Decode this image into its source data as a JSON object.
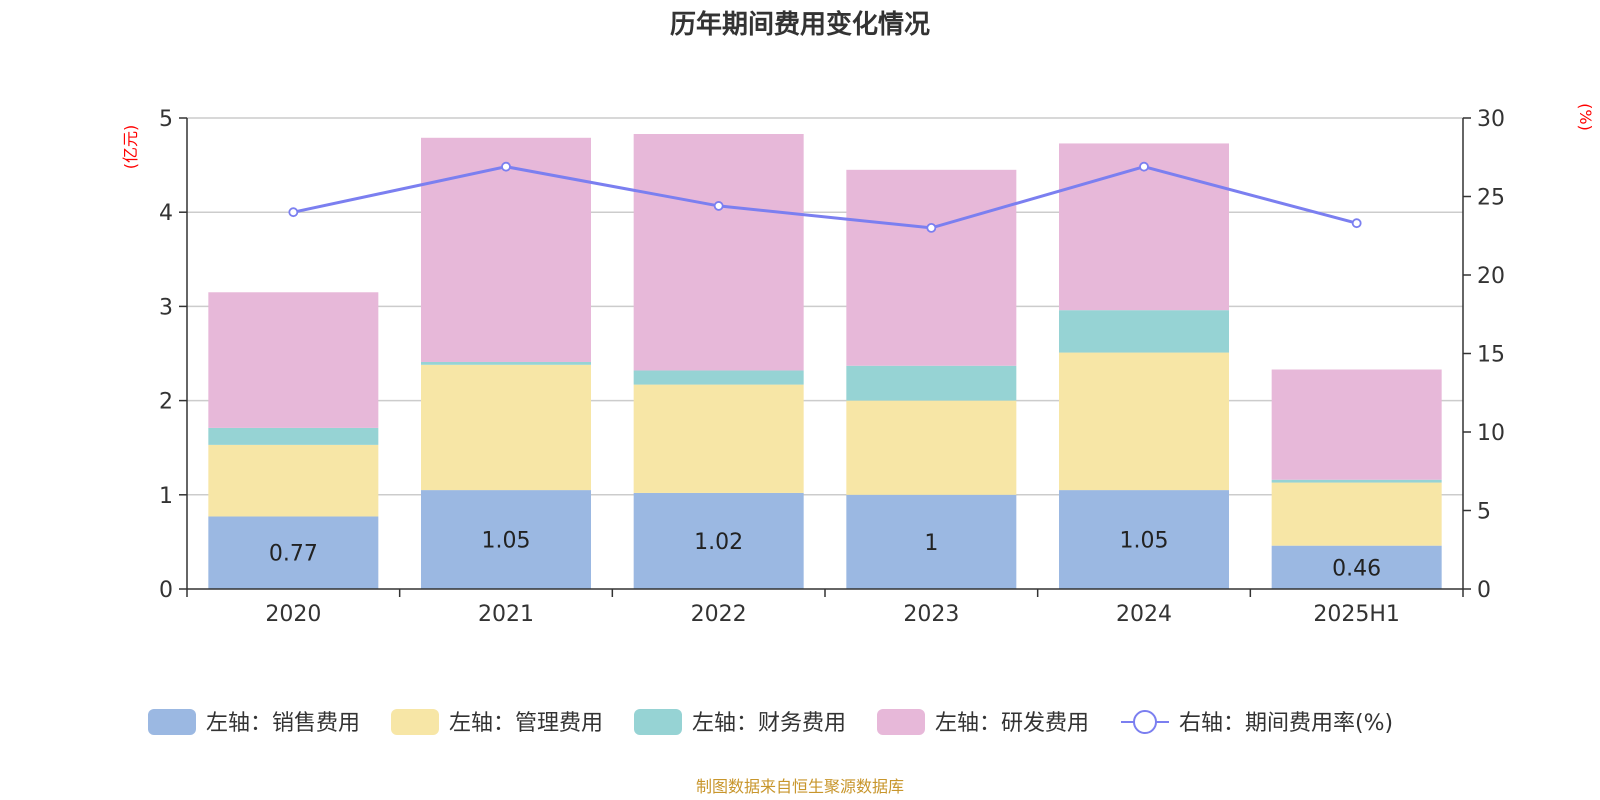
{
  "colors": {
    "sales": "#9bb8e2",
    "admin": "#f7e6a6",
    "finance": "#96d3d4",
    "rnd": "#e7b8d9",
    "rate_line": "#7b7ff0",
    "axis_unit": "#ff0000",
    "source": "#c8962c",
    "grid": "#cccccc"
  },
  "source": "制图数据来自恒生聚源数据库",
  "chart_data": {
    "type": "bar",
    "stacked": true,
    "title": "历年期间费用变化情况",
    "categories": [
      "2020",
      "2021",
      "2022",
      "2023",
      "2024",
      "2025H1"
    ],
    "y_left": {
      "unit_label": "(亿元)",
      "range": [
        0,
        5
      ],
      "ticks": [
        "0",
        "1",
        "2",
        "3",
        "4",
        "5"
      ]
    },
    "y_right": {
      "unit_label": "(%)",
      "range": [
        0,
        30
      ],
      "ticks": [
        "0",
        "5",
        "10",
        "15",
        "20",
        "25",
        "30"
      ]
    },
    "grid": true,
    "legend_position": "bottom",
    "series": [
      {
        "key": "sales",
        "name": "左轴：销售费用",
        "axis": "left",
        "type": "bar",
        "values": [
          0.77,
          1.05,
          1.02,
          1.0,
          1.05,
          0.46
        ],
        "labels": [
          "0.77",
          "1.05",
          "1.02",
          "1",
          "1.05",
          "0.46"
        ]
      },
      {
        "key": "admin",
        "name": "左轴：管理费用",
        "axis": "left",
        "type": "bar",
        "values": [
          0.76,
          1.33,
          1.15,
          1.0,
          1.46,
          0.67
        ]
      },
      {
        "key": "finance",
        "name": "左轴：财务费用",
        "axis": "left",
        "type": "bar",
        "values": [
          0.18,
          0.03,
          0.15,
          0.37,
          0.45,
          0.03
        ]
      },
      {
        "key": "rnd",
        "name": "左轴：研发费用",
        "axis": "left",
        "type": "bar",
        "values": [
          1.44,
          2.38,
          2.51,
          2.08,
          1.77,
          1.17
        ]
      },
      {
        "key": "rate",
        "name": "右轴：期间费用率(%)",
        "axis": "right",
        "type": "line",
        "values": [
          24.0,
          26.9,
          24.4,
          23.0,
          26.9,
          23.3
        ]
      }
    ]
  }
}
